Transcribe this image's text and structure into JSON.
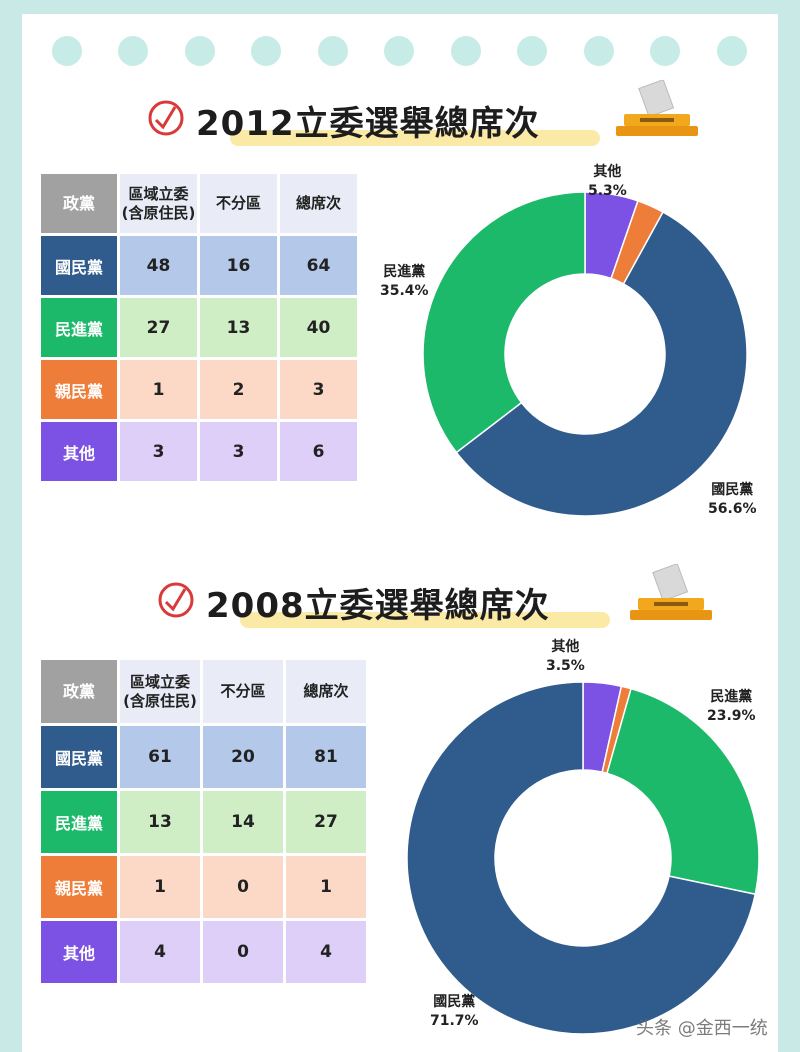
{
  "colors": {
    "kmt": "#2f5b8d",
    "dpp": "#1db96a",
    "pfp": "#ee7d3a",
    "other": "#7c52e4"
  },
  "sections": [
    {
      "title": "2012立委選舉總席次",
      "table": {
        "headers": [
          "政黨",
          "區域立委\n(含原住民)",
          "不分區",
          "總席次"
        ],
        "rows": [
          {
            "party": "國民黨",
            "values": [
              "48",
              "16",
              "64"
            ]
          },
          {
            "party": "民進黨",
            "values": [
              "27",
              "13",
              "40"
            ]
          },
          {
            "party": "親民黨",
            "values": [
              "1",
              "2",
              "3"
            ]
          },
          {
            "party": "其他",
            "values": [
              "3",
              "3",
              "6"
            ]
          }
        ]
      },
      "labels": {
        "kmt": {
          "name": "國民黨",
          "pct": "56.6%"
        },
        "dpp": {
          "name": "民進黨",
          "pct": "35.4%"
        },
        "other": {
          "name": "其他",
          "pct": "5.3%"
        }
      }
    },
    {
      "title": "2008立委選舉總席次",
      "table": {
        "headers": [
          "政黨",
          "區域立委\n(含原住民)",
          "不分區",
          "總席次"
        ],
        "rows": [
          {
            "party": "國民黨",
            "values": [
              "61",
              "20",
              "81"
            ]
          },
          {
            "party": "民進黨",
            "values": [
              "13",
              "14",
              "27"
            ]
          },
          {
            "party": "親民黨",
            "values": [
              "1",
              "0",
              "1"
            ]
          },
          {
            "party": "其他",
            "values": [
              "4",
              "0",
              "4"
            ]
          }
        ]
      },
      "labels": {
        "kmt": {
          "name": "國民黨",
          "pct": "71.7%"
        },
        "dpp": {
          "name": "民進黨",
          "pct": "23.9%"
        },
        "other": {
          "name": "其他",
          "pct": "3.5%"
        }
      }
    }
  ],
  "chart_data": [
    {
      "type": "pie",
      "donut": true,
      "categories": [
        "其他",
        "親民黨",
        "國民黨",
        "民進黨"
      ],
      "values": [
        5.3,
        2.7,
        56.6,
        35.4
      ],
      "data_labels": [
        "其他 5.3%",
        "",
        "國民黨 56.6%",
        "民進黨 35.4%"
      ]
    },
    {
      "type": "pie",
      "donut": true,
      "categories": [
        "其他",
        "親民黨",
        "民進黨",
        "國民黨"
      ],
      "values": [
        3.5,
        0.9,
        23.9,
        71.7
      ],
      "data_labels": [
        "其他 3.5%",
        "",
        "民進黨 23.9%",
        "國民黨 71.7%"
      ]
    }
  ],
  "watermark": "头条 @金西一统"
}
